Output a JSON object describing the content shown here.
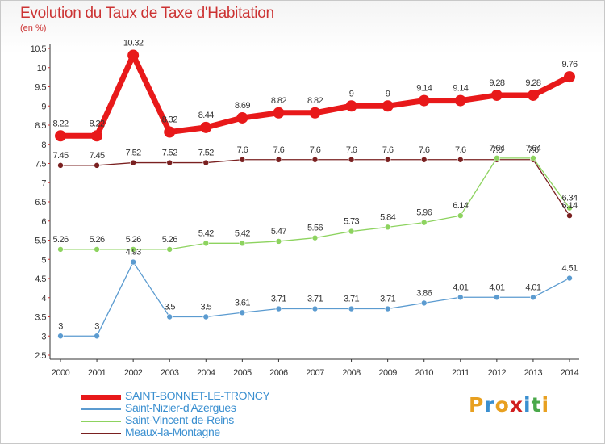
{
  "title": "Evolution du Taux de Taxe d'Habitation",
  "unit": "(en %)",
  "logo": {
    "letters": [
      "P",
      "r",
      "o",
      "x",
      "i",
      "t",
      "i"
    ],
    "colors": [
      "#e8a020",
      "#3a8fd0",
      "#e8a020",
      "#d02020",
      "#3a8fd0",
      "#4aa84a",
      "#e8a020"
    ]
  },
  "chart_data": {
    "type": "line",
    "title": "Evolution du Taux de Taxe d'Habitation",
    "ylabel": "(en %)",
    "xlabel": "",
    "categories": [
      "2000",
      "2001",
      "2002",
      "2003",
      "2004",
      "2005",
      "2006",
      "2007",
      "2008",
      "2009",
      "2010",
      "2011",
      "2012",
      "2013",
      "2014"
    ],
    "ylim": [
      2.5,
      10.5
    ],
    "yticks": [
      "2.5",
      "3",
      "3.5",
      "4",
      "4.5",
      "5",
      "5.5",
      "6",
      "6.5",
      "7",
      "7.5",
      "8",
      "8.5",
      "9",
      "9.5",
      "10",
      "10.5"
    ],
    "grid": false,
    "legend_position": "bottom-left",
    "series": [
      {
        "name": "SAINT-BONNET-LE-TRONCY",
        "color": "#e8191a",
        "width": 7,
        "marker": 7,
        "values": [
          8.22,
          8.22,
          10.32,
          8.32,
          8.44,
          8.69,
          8.82,
          8.82,
          9,
          9,
          9.14,
          9.14,
          9.28,
          9.28,
          9.76
        ],
        "labels": [
          "8.22",
          "8.22",
          "10.32",
          "8.32",
          "8.44",
          "8.69",
          "8.82",
          "8.82",
          "9",
          "9",
          "9.14",
          "9.14",
          "9.28",
          "9.28",
          "9.76"
        ]
      },
      {
        "name": "Saint-Nizier-d'Azergues",
        "color": "#5b9bd0",
        "width": 1.3,
        "marker": 3.5,
        "values": [
          3,
          3,
          4.93,
          3.5,
          3.5,
          3.61,
          3.71,
          3.71,
          3.71,
          3.71,
          3.86,
          4.01,
          4.01,
          4.01,
          4.51
        ],
        "labels": [
          "3",
          "3",
          "4.93",
          "3.5",
          "3.5",
          "3.61",
          "3.71",
          "3.71",
          "3.71",
          "3.71",
          "3.86",
          "4.01",
          "4.01",
          "4.01",
          "4.51"
        ]
      },
      {
        "name": "Saint-Vincent-de-Reins",
        "color": "#8dd35f",
        "width": 1.3,
        "marker": 3.5,
        "values": [
          5.26,
          5.26,
          5.26,
          5.26,
          5.42,
          5.42,
          5.47,
          5.56,
          5.73,
          5.84,
          5.96,
          6.14,
          7.64,
          7.64,
          6.34
        ],
        "labels": [
          "5.26",
          "5.26",
          "5.26",
          "5.26",
          "5.42",
          "5.42",
          "5.47",
          "5.56",
          "5.73",
          "5.84",
          "5.96",
          "6.14",
          "7.64",
          "7.64",
          "6.34"
        ]
      },
      {
        "name": "Meaux-la-Montagne",
        "color": "#7a2020",
        "width": 1.3,
        "marker": 3.5,
        "values": [
          7.45,
          7.45,
          7.52,
          7.52,
          7.52,
          7.6,
          7.6,
          7.6,
          7.6,
          7.6,
          7.6,
          7.6,
          7.6,
          7.6,
          6.14
        ],
        "labels": [
          "7.45",
          "7.45",
          "7.52",
          "7.52",
          "7.52",
          "7.6",
          "7.6",
          "7.6",
          "7.6",
          "7.6",
          "7.6",
          "7.6",
          "7.6",
          "7.6",
          "6.14"
        ]
      }
    ]
  }
}
